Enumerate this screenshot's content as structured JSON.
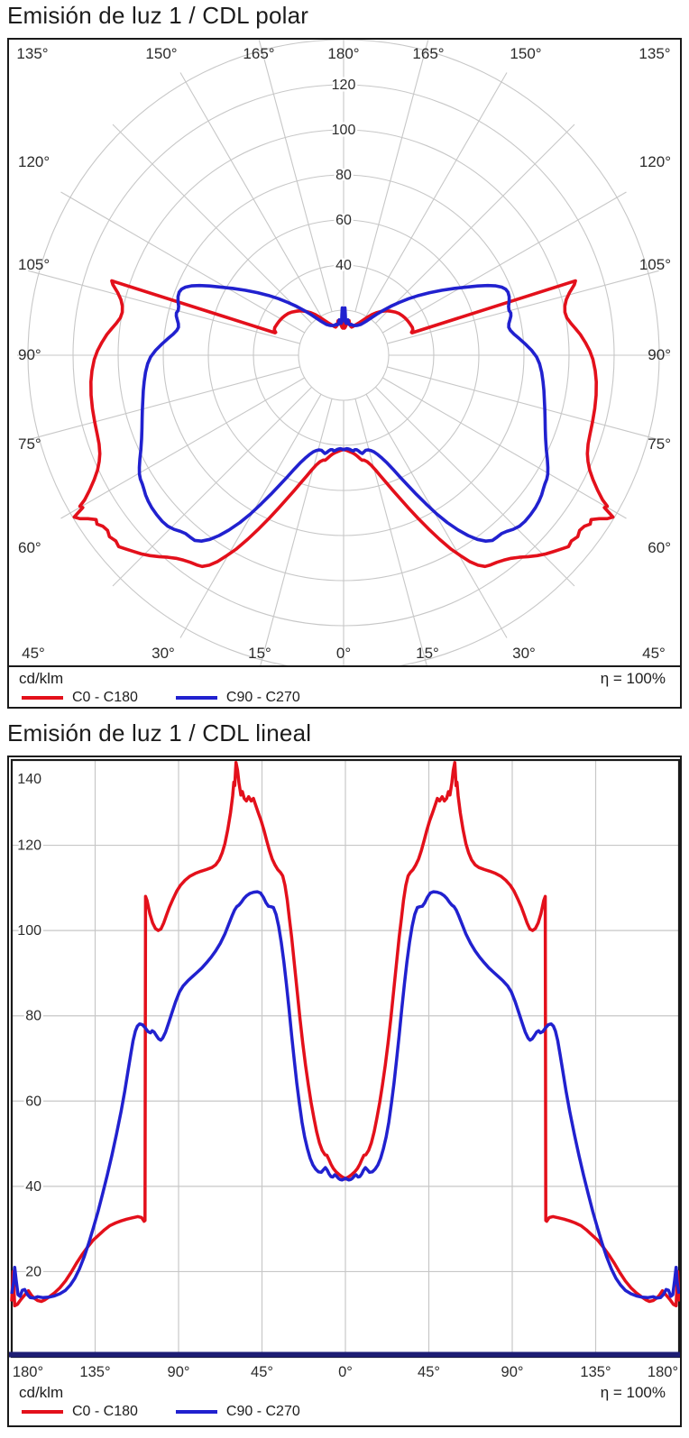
{
  "polar_section": {
    "title": "Emisión de luz 1 / CDL polar"
  },
  "linear_section": {
    "title": "Emisión de luz 1 / CDL lineal"
  },
  "legend": {
    "unit": "cd/klm",
    "efficiency": "η = 100%"
  },
  "colors": {
    "c0_series": "#e3101b",
    "c90_series": "#2121cf",
    "axis_navy": "#1d1d74",
    "grid": "#c7c7c7",
    "frame": "#1a1a1a"
  },
  "chart_data": {
    "charts": [
      {
        "type": "line",
        "variant": "polar",
        "title": "Emisión de luz 1 / CDL polar",
        "units": "cd/klm",
        "efficiency": "η = 100%",
        "radial_ticks": [
          20,
          40,
          60,
          80,
          100,
          120,
          140
        ],
        "radial_tick_labels": [
          "40",
          "60",
          "80",
          "100",
          "120"
        ],
        "angle_step_deg": 15,
        "angle_labels": {
          "top": [
            "135°",
            "150°",
            "165°",
            "180°",
            "165°",
            "150°",
            "135°"
          ],
          "left": [
            "120°",
            "105°",
            "90°",
            "75°",
            "60°"
          ],
          "right": [
            "120°",
            "105°",
            "90°",
            "75°",
            "60°"
          ],
          "bottom": [
            "45°",
            "30°",
            "15°",
            "0°",
            "15°",
            "30°",
            "45°"
          ]
        },
        "grid": true,
        "legend_position": "bottom"
      },
      {
        "type": "line",
        "variant": "cartesian",
        "title": "Emisión de luz 1 / CDL lineal",
        "units": "cd/klm",
        "efficiency": "η = 100%",
        "xlim": [
          -180,
          180
        ],
        "ylim": [
          0,
          140
        ],
        "x_tick_degrees": [
          -180,
          -135,
          -90,
          -45,
          0,
          45,
          90,
          135,
          180
        ],
        "x_tick_labels": [
          "180°",
          "135°",
          "90°",
          "45°",
          "0°",
          "45°",
          "90°",
          "135°",
          "180°"
        ],
        "y_ticks": [
          20,
          40,
          60,
          80,
          100,
          120,
          140
        ],
        "grid": true,
        "legend_position": "bottom"
      }
    ],
    "series": [
      {
        "name": "C0 - C180",
        "color": "#e3101b",
        "symmetric_mirror": true,
        "points_deg_value": [
          [
            -180,
            13
          ],
          [
            -179.2,
            20
          ],
          [
            -178.4,
            12
          ],
          [
            -177,
            12.3
          ],
          [
            -175,
            13.5
          ],
          [
            -173,
            14.5
          ],
          [
            -171,
            15.5
          ],
          [
            -169.5,
            14.5
          ],
          [
            -168,
            13.8
          ],
          [
            -166,
            13.2
          ],
          [
            -164,
            13
          ],
          [
            -162,
            13.4
          ],
          [
            -160,
            14
          ],
          [
            -157,
            15
          ],
          [
            -154,
            16.2
          ],
          [
            -151,
            17.8
          ],
          [
            -148,
            19.8
          ],
          [
            -145,
            22
          ],
          [
            -142,
            24
          ],
          [
            -139,
            25.8
          ],
          [
            -136,
            27.4
          ],
          [
            -133,
            28.6
          ],
          [
            -130,
            29.8
          ],
          [
            -127,
            30.8
          ],
          [
            -124,
            31.4
          ],
          [
            -121,
            31.9
          ],
          [
            -118,
            32.3
          ],
          [
            -115,
            32.6
          ],
          [
            -112,
            32.9
          ],
          [
            -110,
            32.7
          ],
          [
            -108.6,
            31.8
          ],
          [
            -108.1,
            32
          ],
          [
            -107.8,
            108
          ],
          [
            -107,
            107
          ],
          [
            -105.5,
            104
          ],
          [
            -104,
            101.8
          ],
          [
            -102.5,
            100.5
          ],
          [
            -101,
            100
          ],
          [
            -99.5,
            100.4
          ],
          [
            -98,
            101.8
          ],
          [
            -96.5,
            103.6
          ],
          [
            -95,
            105.4
          ],
          [
            -93,
            107.4
          ],
          [
            -91,
            109.2
          ],
          [
            -89,
            110.6
          ],
          [
            -86.5,
            111.8
          ],
          [
            -84,
            112.7
          ],
          [
            -81,
            113.4
          ],
          [
            -78,
            113.9
          ],
          [
            -75,
            114.3
          ],
          [
            -72,
            114.8
          ],
          [
            -70,
            115.4
          ],
          [
            -68,
            116.6
          ],
          [
            -66.5,
            118.2
          ],
          [
            -65,
            120.4
          ],
          [
            -63.5,
            123.6
          ],
          [
            -62,
            127.6
          ],
          [
            -60.8,
            131.6
          ],
          [
            -60.2,
            134.8
          ],
          [
            -59.7,
            134
          ],
          [
            -59,
            139.4
          ],
          [
            -58.2,
            137.6
          ],
          [
            -57.4,
            134.6
          ],
          [
            -56.4,
            131.8
          ],
          [
            -55.6,
            132.6
          ],
          [
            -54.6,
            131
          ],
          [
            -53.4,
            130.4
          ],
          [
            -52.2,
            131.4
          ],
          [
            -50.8,
            130.4
          ],
          [
            -49.6,
            131
          ],
          [
            -48.4,
            129.4
          ],
          [
            -47,
            127.6
          ],
          [
            -45.5,
            125.8
          ],
          [
            -44,
            123.6
          ],
          [
            -42.5,
            121.2
          ],
          [
            -41,
            118.8
          ],
          [
            -39.5,
            116.8
          ],
          [
            -38,
            115.4
          ],
          [
            -36.5,
            114.3
          ],
          [
            -35,
            113.6
          ],
          [
            -33.8,
            112.8
          ],
          [
            -32.6,
            110.6
          ],
          [
            -31.4,
            107.2
          ],
          [
            -30.2,
            102.8
          ],
          [
            -29,
            98.4
          ],
          [
            -27.5,
            92
          ],
          [
            -26,
            85.6
          ],
          [
            -24.5,
            79.4
          ],
          [
            -23,
            73.6
          ],
          [
            -21.5,
            68.4
          ],
          [
            -20,
            63.8
          ],
          [
            -18.5,
            59.6
          ],
          [
            -17,
            56
          ],
          [
            -15.5,
            52.8
          ],
          [
            -14,
            50.2
          ],
          [
            -12.5,
            48.4
          ],
          [
            -11,
            47.4
          ],
          [
            -10,
            47.3
          ],
          [
            -9,
            46.4
          ],
          [
            -7.8,
            45.2
          ],
          [
            -6.5,
            44.2
          ],
          [
            -5,
            43.4
          ],
          [
            -3.5,
            42.8
          ],
          [
            -2,
            42.3
          ],
          [
            -0.8,
            42
          ],
          [
            0,
            41.7
          ]
        ]
      },
      {
        "name": "C90 - C270",
        "color": "#2121cf",
        "symmetric_mirror": true,
        "points_deg_value": [
          [
            -180,
            14.8
          ],
          [
            -179,
            17.5
          ],
          [
            -178.4,
            21
          ],
          [
            -177.6,
            18
          ],
          [
            -176.6,
            14.6
          ],
          [
            -175.5,
            14.2
          ],
          [
            -174.3,
            15.6
          ],
          [
            -173,
            15.8
          ],
          [
            -171.5,
            14.6
          ],
          [
            -170,
            13.9
          ],
          [
            -168,
            13.8
          ],
          [
            -166,
            14.1
          ],
          [
            -163,
            13.9
          ],
          [
            -160,
            14
          ],
          [
            -157,
            14.3
          ],
          [
            -154,
            14.8
          ],
          [
            -151,
            15.6
          ],
          [
            -148.5,
            16.8
          ],
          [
            -146,
            18.4
          ],
          [
            -143.5,
            20.6
          ],
          [
            -141,
            23.4
          ],
          [
            -138.5,
            26.6
          ],
          [
            -136,
            30.2
          ],
          [
            -133.5,
            34
          ],
          [
            -131,
            38.2
          ],
          [
            -128.5,
            42.6
          ],
          [
            -126,
            47.2
          ],
          [
            -123.5,
            52.2
          ],
          [
            -121,
            57.6
          ],
          [
            -119,
            62.4
          ],
          [
            -117.3,
            67
          ],
          [
            -115.8,
            71
          ],
          [
            -114.5,
            74.2
          ],
          [
            -113.3,
            76.4
          ],
          [
            -112.2,
            77.6
          ],
          [
            -111,
            78.1
          ],
          [
            -109.5,
            77.9
          ],
          [
            -108,
            77.2
          ],
          [
            -106.5,
            76.3
          ],
          [
            -105.2,
            76
          ],
          [
            -104.2,
            76.5
          ],
          [
            -103.2,
            76.2
          ],
          [
            -102,
            75.4
          ],
          [
            -100.8,
            74.6
          ],
          [
            -99.6,
            74.3
          ],
          [
            -98.5,
            74.8
          ],
          [
            -97,
            76.2
          ],
          [
            -95.3,
            78.4
          ],
          [
            -93.5,
            80.8
          ],
          [
            -91.5,
            83.4
          ],
          [
            -89.5,
            85.6
          ],
          [
            -87.5,
            87
          ],
          [
            -85,
            88.2
          ],
          [
            -82.5,
            89.2
          ],
          [
            -80,
            90.2
          ],
          [
            -77.5,
            91.2
          ],
          [
            -75,
            92.4
          ],
          [
            -72.5,
            93.7
          ],
          [
            -70,
            95.2
          ],
          [
            -67.5,
            97
          ],
          [
            -65,
            99.2
          ],
          [
            -63,
            101.4
          ],
          [
            -61.2,
            103.4
          ],
          [
            -59.8,
            104.8
          ],
          [
            -58.6,
            105.6
          ],
          [
            -57.4,
            106
          ],
          [
            -56.2,
            106.6
          ],
          [
            -54.8,
            107.5
          ],
          [
            -53.2,
            108.2
          ],
          [
            -51.5,
            108.7
          ],
          [
            -49.5,
            109
          ],
          [
            -47.5,
            109.1
          ],
          [
            -45.8,
            108.8
          ],
          [
            -44.2,
            107.8
          ],
          [
            -42.8,
            106.5
          ],
          [
            -41.5,
            105.7
          ],
          [
            -40.2,
            105.6
          ],
          [
            -38.8,
            105.4
          ],
          [
            -37.4,
            103.8
          ],
          [
            -36,
            101
          ],
          [
            -34.6,
            97.2
          ],
          [
            -33.2,
            92.6
          ],
          [
            -31.8,
            87.4
          ],
          [
            -30.4,
            81.6
          ],
          [
            -29,
            75.4
          ],
          [
            -27.6,
            69.6
          ],
          [
            -26.2,
            64.2
          ],
          [
            -24.8,
            59.4
          ],
          [
            -23.4,
            55
          ],
          [
            -22,
            51.6
          ],
          [
            -20.5,
            48.8
          ],
          [
            -19,
            46.6
          ],
          [
            -17.5,
            45
          ],
          [
            -16,
            44
          ],
          [
            -14.5,
            43.4
          ],
          [
            -13,
            43.3
          ],
          [
            -11.8,
            43.9
          ],
          [
            -10.8,
            44.4
          ],
          [
            -9.8,
            43.8
          ],
          [
            -8.8,
            42.9
          ],
          [
            -7.8,
            42.3
          ],
          [
            -6.8,
            42.2
          ],
          [
            -5.8,
            42.7
          ],
          [
            -4.8,
            42.4
          ],
          [
            -3.8,
            41.9
          ],
          [
            -2.8,
            41.6
          ],
          [
            -1.8,
            41.5
          ],
          [
            -0.8,
            41.7
          ],
          [
            0,
            41.9
          ]
        ]
      }
    ]
  }
}
